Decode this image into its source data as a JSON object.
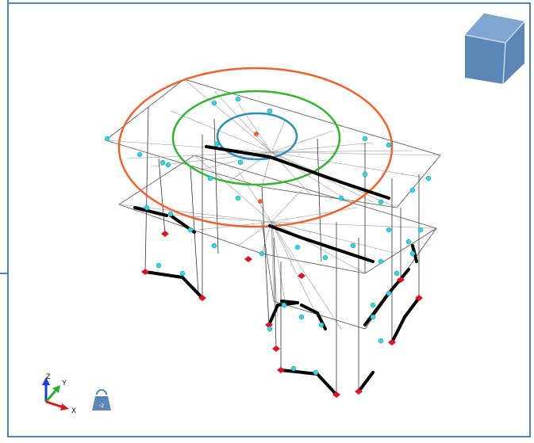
{
  "axes": {
    "z": "Z",
    "y": "Y",
    "x": "X"
  },
  "load_case": "-2"
}
